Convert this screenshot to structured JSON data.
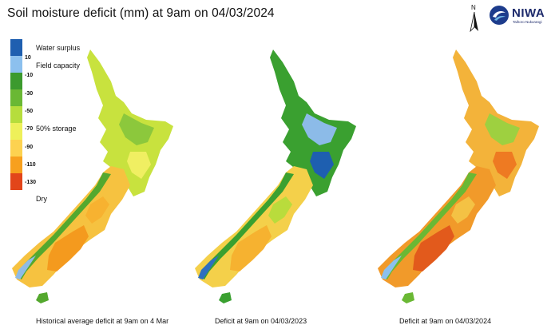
{
  "title": "Soil moisture deficit (mm) at  9am on 04/03/2024",
  "logo": {
    "brand": "NIWA",
    "sub": "Taihoro Nukurangi"
  },
  "north_label": "N",
  "legend": {
    "colors": [
      "#1f5fb0",
      "#4d8fd6",
      "#8cc0ee",
      "#3c9a2e",
      "#6ab834",
      "#b6dd3c",
      "#eef05a",
      "#fdd250",
      "#f7a01e",
      "#ee7a14",
      "#e2451a"
    ],
    "ticks": [
      "10",
      "-10",
      "-30",
      "-50",
      "-70",
      "-90",
      "-110",
      "-130"
    ],
    "categories": [
      "Water surplus",
      "Field capacity",
      "50% storage",
      "Dry"
    ]
  },
  "maps": [
    {
      "caption": "Historical average deficit at 9am on 4 Mar",
      "ni_base": "#c8e23e",
      "ni_patch1": "#8cc83c",
      "ni_patch2": "#f0ef62",
      "si_base": "#f6c240",
      "si_west": "#54a82e",
      "si_coast": "#8ebbe6",
      "si_core": "#f49a1e",
      "si_core2": "#f7b230",
      "stewart": "#54a82e"
    },
    {
      "caption": "Deficit at 9am on 04/03/2023",
      "ni_base": "#3aa030",
      "ni_patch1": "#8cbbe8",
      "ni_patch2": "#1e5fb0",
      "si_base": "#f4d04a",
      "si_west": "#3aa030",
      "si_coast": "#2f6fc0",
      "si_core": "#f6b230",
      "si_core2": "#b9dc3c",
      "stewart": "#3aa030"
    },
    {
      "caption": "Deficit at 9am on 04/03/2024",
      "ni_base": "#f3b33a",
      "ni_patch1": "#9ed040",
      "ni_patch2": "#ee7a22",
      "si_base": "#f19a2a",
      "si_west": "#6ab834",
      "si_coast": "#8cc0ee",
      "si_core": "#e25a1c",
      "si_core2": "#f4c244",
      "stewart": "#6ab834"
    }
  ]
}
